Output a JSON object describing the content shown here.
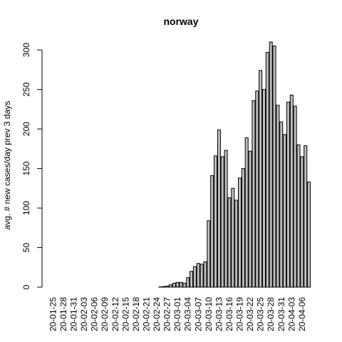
{
  "chart_data": {
    "type": "bar",
    "title": "norway",
    "xlabel": "",
    "ylabel": "avg. # new cases/day prev  3  days",
    "ylim": [
      0,
      310
    ],
    "yticks": [
      0,
      50,
      100,
      150,
      200,
      250,
      300
    ],
    "categories": [
      "20-01-25",
      "20-01-26",
      "20-01-27",
      "20-01-28",
      "20-01-29",
      "20-01-30",
      "20-01-31",
      "20-02-01",
      "20-02-02",
      "20-02-03",
      "20-02-04",
      "20-02-05",
      "20-02-06",
      "20-02-07",
      "20-02-08",
      "20-02-09",
      "20-02-10",
      "20-02-11",
      "20-02-12",
      "20-02-13",
      "20-02-14",
      "20-02-15",
      "20-02-16",
      "20-02-17",
      "20-02-18",
      "20-02-19",
      "20-02-20",
      "20-02-21",
      "20-02-22",
      "20-02-23",
      "20-02-24",
      "20-02-25",
      "20-02-26",
      "20-02-27",
      "20-02-28",
      "20-02-29",
      "20-03-01",
      "20-03-02",
      "20-03-03",
      "20-03-04",
      "20-03-05",
      "20-03-06",
      "20-03-07",
      "20-03-08",
      "20-03-09",
      "20-03-10",
      "20-03-11",
      "20-03-12",
      "20-03-13",
      "20-03-14",
      "20-03-15",
      "20-03-16",
      "20-03-17",
      "20-03-18",
      "20-03-19",
      "20-03-20",
      "20-03-21",
      "20-03-22",
      "20-03-23",
      "20-03-24",
      "20-03-25",
      "20-03-26",
      "20-03-27",
      "20-03-28",
      "20-03-29",
      "20-03-30",
      "20-03-31",
      "20-04-01",
      "20-04-02",
      "20-04-03",
      "20-04-04",
      "20-04-05",
      "20-04-06",
      "20-04-07",
      "20-04-08"
    ],
    "tick_labels": [
      "20-01-25",
      "20-01-28",
      "20-01-31",
      "20-02-03",
      "20-02-06",
      "20-02-09",
      "20-02-12",
      "20-02-15",
      "20-02-18",
      "20-02-21",
      "20-02-24",
      "20-02-27",
      "20-03-01",
      "20-03-04",
      "20-03-07",
      "20-03-10",
      "20-03-13",
      "20-03-16",
      "20-03-19",
      "20-03-22",
      "20-03-25",
      "20-03-28",
      "20-03-31",
      "20-04-03",
      "20-04-06"
    ],
    "values": [
      0,
      0,
      0,
      0,
      0,
      0,
      0,
      0,
      0,
      0,
      0,
      0,
      0,
      0,
      0,
      0,
      0,
      0,
      0,
      0,
      0,
      0,
      0,
      0,
      0,
      0,
      0,
      0,
      0,
      0,
      0,
      0.3,
      0.7,
      1.3,
      3,
      5,
      6,
      6,
      5,
      12,
      20,
      26,
      30,
      29,
      32,
      84,
      141,
      166,
      199,
      165,
      173,
      113,
      125,
      110,
      138,
      150,
      189,
      172,
      236,
      248,
      274,
      250,
      297,
      310,
      305,
      230,
      209,
      193,
      234,
      243,
      229,
      180,
      165,
      179,
      133
    ],
    "bar_color": "#bebebe",
    "grid": false
  }
}
